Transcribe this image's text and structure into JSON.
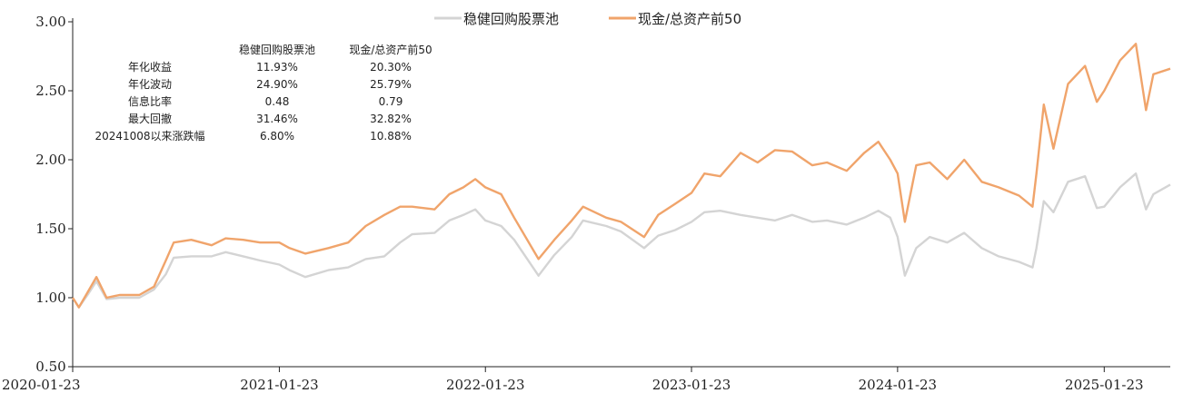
{
  "chart_data": {
    "type": "line",
    "title": "",
    "ylim": [
      0.5,
      3.0
    ],
    "y_ticks": [
      "3.00",
      "2.50",
      "2.00",
      "1.50",
      "1.00",
      "0.50"
    ],
    "x_ticks": [
      "2020-01-23",
      "2021-01-23",
      "2022-01-23",
      "2023-01-23",
      "2024-01-23",
      "2025-01-23"
    ],
    "legend_position": "top-center",
    "series": [
      {
        "name": "稳健回购股票池",
        "color": "#d4d4d4",
        "points": [
          [
            "2020-01-23",
            1.0
          ],
          [
            "2020-02-03",
            0.93
          ],
          [
            "2020-02-20",
            1.03
          ],
          [
            "2020-03-05",
            1.12
          ],
          [
            "2020-03-23",
            0.99
          ],
          [
            "2020-04-15",
            1.0
          ],
          [
            "2020-05-20",
            1.0
          ],
          [
            "2020-06-15",
            1.06
          ],
          [
            "2020-07-06",
            1.17
          ],
          [
            "2020-07-20",
            1.29
          ],
          [
            "2020-08-20",
            1.3
          ],
          [
            "2020-09-25",
            1.3
          ],
          [
            "2020-10-20",
            1.33
          ],
          [
            "2020-11-20",
            1.3
          ],
          [
            "2020-12-20",
            1.27
          ],
          [
            "2021-01-23",
            1.24
          ],
          [
            "2021-02-10",
            1.2
          ],
          [
            "2021-03-10",
            1.15
          ],
          [
            "2021-04-20",
            1.2
          ],
          [
            "2021-05-25",
            1.22
          ],
          [
            "2021-06-25",
            1.28
          ],
          [
            "2021-07-28",
            1.3
          ],
          [
            "2021-08-25",
            1.4
          ],
          [
            "2021-09-15",
            1.46
          ],
          [
            "2021-10-25",
            1.47
          ],
          [
            "2021-11-20",
            1.56
          ],
          [
            "2021-12-15",
            1.6
          ],
          [
            "2022-01-05",
            1.64
          ],
          [
            "2022-01-23",
            1.56
          ],
          [
            "2022-02-20",
            1.52
          ],
          [
            "2022-03-15",
            1.42
          ],
          [
            "2022-04-27",
            1.16
          ],
          [
            "2022-05-25",
            1.31
          ],
          [
            "2022-06-25",
            1.44
          ],
          [
            "2022-07-15",
            1.56
          ],
          [
            "2022-08-25",
            1.52
          ],
          [
            "2022-09-20",
            1.48
          ],
          [
            "2022-10-31",
            1.36
          ],
          [
            "2022-11-25",
            1.45
          ],
          [
            "2022-12-25",
            1.49
          ],
          [
            "2023-01-23",
            1.55
          ],
          [
            "2023-02-15",
            1.62
          ],
          [
            "2023-03-15",
            1.63
          ],
          [
            "2023-04-20",
            1.6
          ],
          [
            "2023-05-20",
            1.58
          ],
          [
            "2023-06-20",
            1.56
          ],
          [
            "2023-07-20",
            1.6
          ],
          [
            "2023-08-25",
            1.55
          ],
          [
            "2023-09-20",
            1.56
          ],
          [
            "2023-10-25",
            1.53
          ],
          [
            "2023-11-25",
            1.58
          ],
          [
            "2023-12-20",
            1.63
          ],
          [
            "2024-01-10",
            1.58
          ],
          [
            "2024-01-23",
            1.44
          ],
          [
            "2024-02-05",
            1.16
          ],
          [
            "2024-02-25",
            1.36
          ],
          [
            "2024-03-20",
            1.44
          ],
          [
            "2024-04-20",
            1.4
          ],
          [
            "2024-05-20",
            1.47
          ],
          [
            "2024-06-20",
            1.36
          ],
          [
            "2024-07-20",
            1.3
          ],
          [
            "2024-08-25",
            1.26
          ],
          [
            "2024-09-18",
            1.22
          ],
          [
            "2024-09-25",
            1.36
          ],
          [
            "2024-10-08",
            1.7
          ],
          [
            "2024-10-25",
            1.62
          ],
          [
            "2024-11-20",
            1.84
          ],
          [
            "2024-12-20",
            1.88
          ],
          [
            "2025-01-10",
            1.65
          ],
          [
            "2025-01-23",
            1.66
          ],
          [
            "2025-02-20",
            1.8
          ],
          [
            "2025-03-20",
            1.9
          ],
          [
            "2025-04-07",
            1.64
          ],
          [
            "2025-04-20",
            1.75
          ],
          [
            "2025-05-20",
            1.82
          ]
        ]
      },
      {
        "name": "现金/总资产前50",
        "color": "#f0a46b",
        "points": [
          [
            "2020-01-23",
            1.0
          ],
          [
            "2020-02-03",
            0.93
          ],
          [
            "2020-02-20",
            1.05
          ],
          [
            "2020-03-05",
            1.15
          ],
          [
            "2020-03-23",
            1.0
          ],
          [
            "2020-04-15",
            1.02
          ],
          [
            "2020-05-20",
            1.02
          ],
          [
            "2020-06-15",
            1.08
          ],
          [
            "2020-07-06",
            1.27
          ],
          [
            "2020-07-20",
            1.4
          ],
          [
            "2020-08-20",
            1.42
          ],
          [
            "2020-09-25",
            1.38
          ],
          [
            "2020-10-20",
            1.43
          ],
          [
            "2020-11-20",
            1.42
          ],
          [
            "2020-12-20",
            1.4
          ],
          [
            "2021-01-23",
            1.4
          ],
          [
            "2021-02-10",
            1.36
          ],
          [
            "2021-03-10",
            1.32
          ],
          [
            "2021-04-20",
            1.36
          ],
          [
            "2021-05-25",
            1.4
          ],
          [
            "2021-06-25",
            1.52
          ],
          [
            "2021-07-28",
            1.6
          ],
          [
            "2021-08-25",
            1.66
          ],
          [
            "2021-09-15",
            1.66
          ],
          [
            "2021-10-25",
            1.64
          ],
          [
            "2021-11-20",
            1.75
          ],
          [
            "2021-12-15",
            1.8
          ],
          [
            "2022-01-05",
            1.86
          ],
          [
            "2022-01-23",
            1.8
          ],
          [
            "2022-02-20",
            1.75
          ],
          [
            "2022-03-15",
            1.58
          ],
          [
            "2022-04-27",
            1.28
          ],
          [
            "2022-05-25",
            1.42
          ],
          [
            "2022-06-25",
            1.56
          ],
          [
            "2022-07-15",
            1.66
          ],
          [
            "2022-08-25",
            1.58
          ],
          [
            "2022-09-20",
            1.55
          ],
          [
            "2022-10-31",
            1.44
          ],
          [
            "2022-11-25",
            1.6
          ],
          [
            "2022-12-25",
            1.68
          ],
          [
            "2023-01-23",
            1.76
          ],
          [
            "2023-02-15",
            1.9
          ],
          [
            "2023-03-15",
            1.88
          ],
          [
            "2023-04-20",
            2.05
          ],
          [
            "2023-05-20",
            1.98
          ],
          [
            "2023-06-20",
            2.07
          ],
          [
            "2023-07-20",
            2.06
          ],
          [
            "2023-08-25",
            1.96
          ],
          [
            "2023-09-20",
            1.98
          ],
          [
            "2023-10-25",
            1.92
          ],
          [
            "2023-11-25",
            2.05
          ],
          [
            "2023-12-20",
            2.13
          ],
          [
            "2024-01-10",
            2.0
          ],
          [
            "2024-01-23",
            1.9
          ],
          [
            "2024-02-05",
            1.55
          ],
          [
            "2024-02-25",
            1.96
          ],
          [
            "2024-03-20",
            1.98
          ],
          [
            "2024-04-20",
            1.86
          ],
          [
            "2024-05-20",
            2.0
          ],
          [
            "2024-06-20",
            1.84
          ],
          [
            "2024-07-20",
            1.8
          ],
          [
            "2024-08-25",
            1.74
          ],
          [
            "2024-09-18",
            1.66
          ],
          [
            "2024-09-25",
            1.9
          ],
          [
            "2024-10-08",
            2.4
          ],
          [
            "2024-10-25",
            2.08
          ],
          [
            "2024-11-20",
            2.55
          ],
          [
            "2024-12-20",
            2.68
          ],
          [
            "2025-01-10",
            2.42
          ],
          [
            "2025-01-23",
            2.5
          ],
          [
            "2025-02-20",
            2.72
          ],
          [
            "2025-03-20",
            2.84
          ],
          [
            "2025-04-07",
            2.36
          ],
          [
            "2025-04-20",
            2.62
          ],
          [
            "2025-05-20",
            2.66
          ]
        ]
      }
    ],
    "stats_table": {
      "headers": [
        "稳健回购股票池",
        "现金/总资产前50"
      ],
      "rows": [
        {
          "label": "年化收益",
          "v1": "11.93%",
          "v2": "20.30%"
        },
        {
          "label": "年化波动",
          "v1": "24.90%",
          "v2": "25.79%"
        },
        {
          "label": "信息比率",
          "v1": "0.48",
          "v2": "0.79"
        },
        {
          "label": "最大回撤",
          "v1": "31.46%",
          "v2": "32.82%"
        },
        {
          "label": "20241008以来涨跌幅",
          "v1": "6.80%",
          "v2": "10.88%"
        }
      ]
    }
  }
}
